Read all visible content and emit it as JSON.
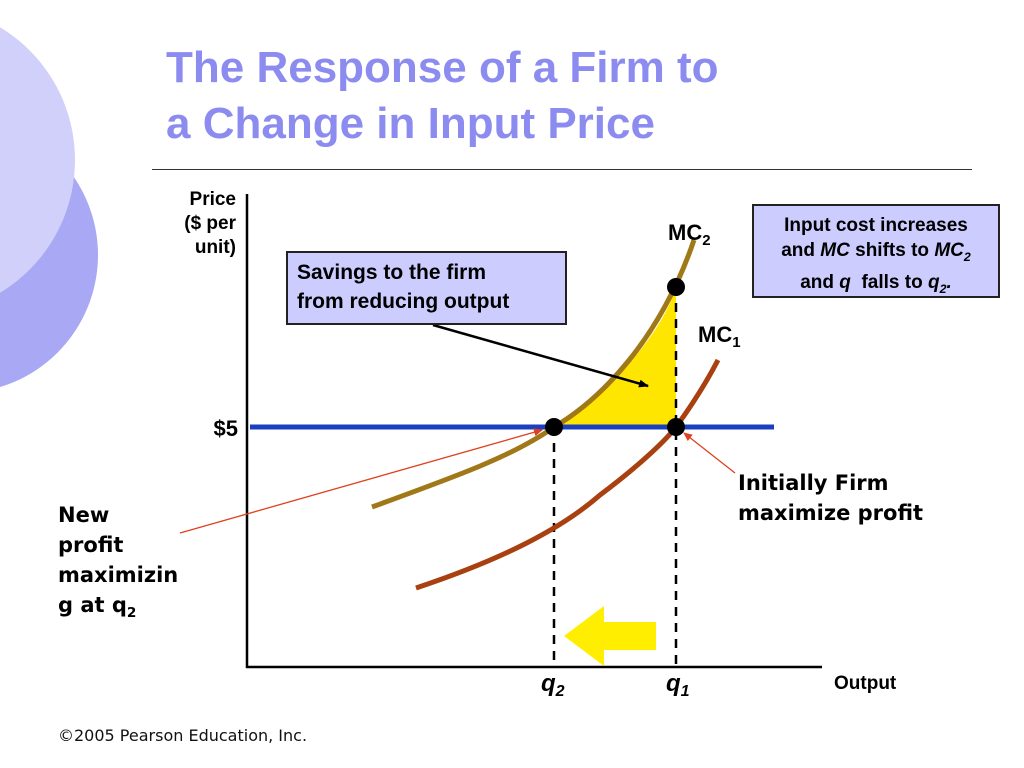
{
  "slide": {
    "title_line1": "The Response of a Firm to",
    "title_line2": "a Change in Input Price",
    "copyright": "©2005 Pearson Education, Inc."
  },
  "diagram": {
    "y_axis_label": [
      "Price",
      "($ per",
      "unit)"
    ],
    "x_axis_label": "Output",
    "price_label": "$5",
    "mc2": {
      "base": "MC",
      "sub": "2",
      "color": "#a07818"
    },
    "mc1": {
      "base": "MC",
      "sub": "1",
      "color": "#a84010"
    },
    "q2": {
      "base": "q",
      "sub": "2"
    },
    "q1": {
      "base": "q",
      "sub": "1"
    },
    "price_line_color": "#1a3fbf",
    "savings_fill": "#ffe600",
    "arrow_fill": "#ffee00",
    "box_fill": "#ccccff"
  },
  "annotations": {
    "savings_box": [
      "Savings to the firm",
      "from reducing output"
    ],
    "input_cost_box": {
      "line1": "Input cost increases",
      "line2_prefix": "and ",
      "line2_mc": "MC",
      "line2_mid": " shifts to ",
      "line2_mc2": "MC",
      "line2_mc2_sub": "2",
      "line3_prefix": "and ",
      "line3_q": "q",
      "line3_mid": "  falls to ",
      "line3_q2": "q",
      "line3_q2_sub": "2",
      "line3_end": "."
    },
    "new_profit": [
      "New",
      "profit",
      "maximizin",
      "g at q"
    ],
    "new_profit_sub": "2",
    "initial_profit": [
      "Initially Firm",
      "maximize profit"
    ]
  }
}
